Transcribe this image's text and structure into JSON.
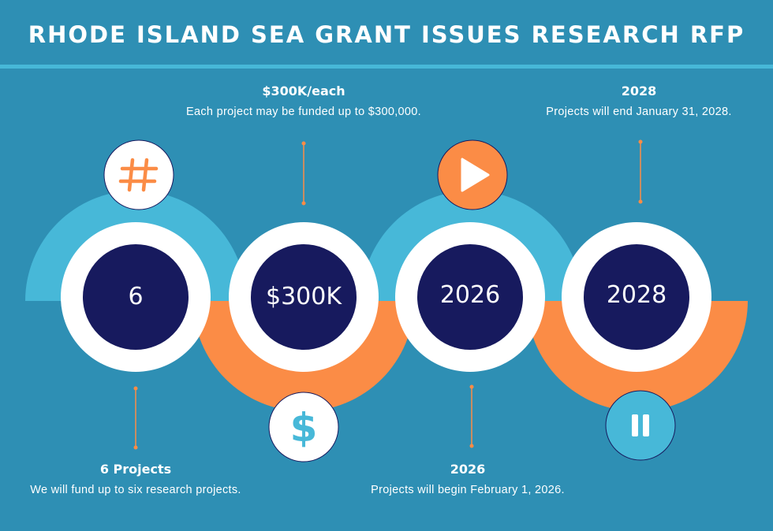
{
  "title": "RHODE ISLAND SEA GRANT ISSUES RESEARCH RFP",
  "colors": {
    "background": "#2e8fb4",
    "light_blue": "#47b8d8",
    "orange": "#fb8c46",
    "navy": "#171a5e",
    "white": "#ffffff"
  },
  "steps": [
    {
      "value": "6",
      "icon": "hash-icon",
      "heading": "6 Projects",
      "description": "We will fund up to six research projects."
    },
    {
      "value": "$300K",
      "icon": "dollar-icon",
      "heading": "$300K/each",
      "description": "Each project may be funded up to $300,000."
    },
    {
      "value": "2026",
      "icon": "play-icon",
      "heading": "2026",
      "description": "Projects will begin February 1, 2026."
    },
    {
      "value": "2028",
      "icon": "pause-icon",
      "heading": "2028",
      "description": "Projects will end January 31, 2028."
    }
  ]
}
